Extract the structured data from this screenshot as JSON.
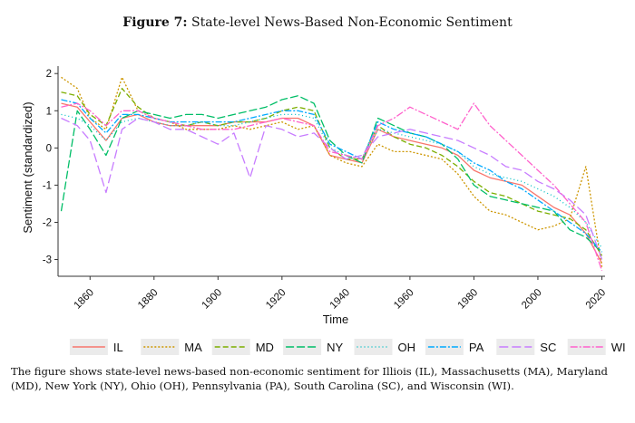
{
  "figure": {
    "label": "Figure 7:",
    "title": "State-level News-Based Non-Economic Sentiment"
  },
  "caption": "The figure shows state-level news-based non-economic sentiment for Illiois (IL), Massachusetts (MA), Maryland (MD), New York (NY), Ohio (OH), Pennsylvania (PA), South Carolina (SC), and Wisconsin (WI).",
  "chart_data": {
    "type": "line",
    "xlabel": "Time",
    "ylabel": "Sentiment (standardized)",
    "xlim": [
      1850,
      2021
    ],
    "ylim": [
      -3.45,
      2.2
    ],
    "xticks": [
      "1860",
      "1880",
      "1900",
      "1920",
      "1940",
      "1960",
      "1980",
      "2000",
      "2020"
    ],
    "yticks": [
      "2",
      "1",
      "0",
      "-1",
      "-2",
      "-3"
    ],
    "grid": false,
    "legend_position": "bottom",
    "x": [
      1851,
      1856,
      1860,
      1865,
      1870,
      1875,
      1880,
      1885,
      1890,
      1895,
      1900,
      1905,
      1910,
      1915,
      1920,
      1925,
      1930,
      1935,
      1940,
      1945,
      1950,
      1955,
      1960,
      1965,
      1970,
      1975,
      1980,
      1985,
      1990,
      1995,
      2000,
      2005,
      2010,
      2015,
      2020
    ],
    "series": [
      {
        "name": "IL",
        "color": "#F8766D",
        "dash": "solid",
        "values": [
          1.2,
          1.1,
          0.7,
          0.2,
          0.8,
          0.9,
          0.7,
          0.6,
          0.6,
          0.6,
          0.6,
          0.7,
          0.7,
          0.7,
          0.8,
          0.8,
          0.6,
          -0.2,
          -0.3,
          -0.4,
          0.5,
          0.3,
          0.2,
          0.1,
          0.0,
          -0.2,
          -0.6,
          -0.8,
          -0.9,
          -1.0,
          -1.3,
          -1.6,
          -1.8,
          -2.3,
          -3.1
        ]
      },
      {
        "name": "MA",
        "color": "#CD9600",
        "dash": "2,2",
        "values": [
          1.9,
          1.6,
          0.8,
          0.5,
          1.9,
          1.0,
          0.8,
          0.7,
          0.5,
          0.5,
          0.5,
          0.6,
          0.5,
          0.6,
          0.7,
          0.5,
          0.6,
          -0.2,
          -0.4,
          -0.5,
          0.1,
          -0.1,
          -0.1,
          -0.2,
          -0.3,
          -0.7,
          -1.3,
          -1.7,
          -1.8,
          -2.0,
          -2.2,
          -2.1,
          -1.9,
          -0.5,
          -3.2
        ]
      },
      {
        "name": "MD",
        "color": "#7CAE00",
        "dash": "6,3",
        "values": [
          1.5,
          1.4,
          0.9,
          0.6,
          1.6,
          1.1,
          0.8,
          0.7,
          0.6,
          0.7,
          0.6,
          0.7,
          0.7,
          0.8,
          1.0,
          1.1,
          1.0,
          0.0,
          -0.3,
          -0.3,
          0.6,
          0.3,
          0.1,
          0.0,
          -0.2,
          -0.5,
          -0.9,
          -1.2,
          -1.3,
          -1.5,
          -1.7,
          -1.8,
          -1.9,
          -2.2,
          -2.9
        ]
      },
      {
        "name": "NY",
        "color": "#00BE67",
        "dash": "9,3",
        "values": [
          -1.7,
          1.0,
          0.5,
          -0.2,
          0.8,
          1.0,
          0.9,
          0.8,
          0.9,
          0.9,
          0.8,
          0.9,
          1.0,
          1.1,
          1.3,
          1.4,
          1.2,
          0.2,
          -0.2,
          -0.4,
          0.8,
          0.6,
          0.4,
          0.3,
          0.1,
          -0.3,
          -1.0,
          -1.3,
          -1.4,
          -1.5,
          -1.6,
          -1.7,
          -2.2,
          -2.4,
          -2.8
        ]
      },
      {
        "name": "OH",
        "color": "#00BFC4",
        "dash": "1,3",
        "values": [
          0.9,
          0.8,
          0.6,
          0.2,
          0.7,
          0.8,
          0.7,
          0.6,
          0.6,
          0.7,
          0.6,
          0.6,
          0.7,
          0.8,
          0.9,
          0.9,
          0.8,
          0.0,
          -0.2,
          -0.3,
          0.5,
          0.4,
          0.3,
          0.2,
          0.1,
          -0.1,
          -0.5,
          -0.7,
          -0.8,
          -0.9,
          -1.1,
          -1.3,
          -1.6,
          -2.0,
          -2.7
        ]
      },
      {
        "name": "PA",
        "color": "#00A9FF",
        "dash": "7,2,2,2",
        "values": [
          1.3,
          1.2,
          0.8,
          0.4,
          0.9,
          0.9,
          0.8,
          0.7,
          0.7,
          0.7,
          0.7,
          0.7,
          0.8,
          0.9,
          1.0,
          1.0,
          0.9,
          0.1,
          -0.1,
          -0.3,
          0.7,
          0.5,
          0.4,
          0.3,
          0.1,
          -0.1,
          -0.4,
          -0.6,
          -0.9,
          -1.1,
          -1.4,
          -1.7,
          -2.0,
          -2.3,
          -2.8
        ]
      },
      {
        "name": "SC",
        "color": "#C77CFF",
        "dash": "10,4",
        "values": [
          0.8,
          0.6,
          0.2,
          -1.2,
          0.5,
          0.8,
          0.7,
          0.5,
          0.5,
          0.3,
          0.1,
          0.4,
          -0.8,
          0.6,
          0.5,
          0.3,
          0.4,
          0.0,
          -0.3,
          -0.2,
          0.3,
          0.4,
          0.5,
          0.4,
          0.3,
          0.2,
          0.0,
          -0.2,
          -0.5,
          -0.6,
          -0.9,
          -1.1,
          -1.4,
          -1.8,
          -3.0
        ]
      },
      {
        "name": "WI",
        "color": "#FF61CC",
        "dash": "8,2,2,2",
        "values": [
          1.1,
          1.2,
          1.0,
          0.6,
          1.0,
          1.0,
          0.8,
          0.7,
          0.6,
          0.5,
          0.5,
          0.5,
          0.6,
          0.7,
          0.8,
          0.7,
          0.6,
          -0.1,
          -0.2,
          -0.3,
          0.6,
          0.8,
          1.1,
          0.9,
          0.7,
          0.5,
          1.2,
          0.6,
          0.2,
          -0.2,
          -0.6,
          -1.0,
          -1.5,
          -2.0,
          -3.3
        ]
      }
    ]
  }
}
